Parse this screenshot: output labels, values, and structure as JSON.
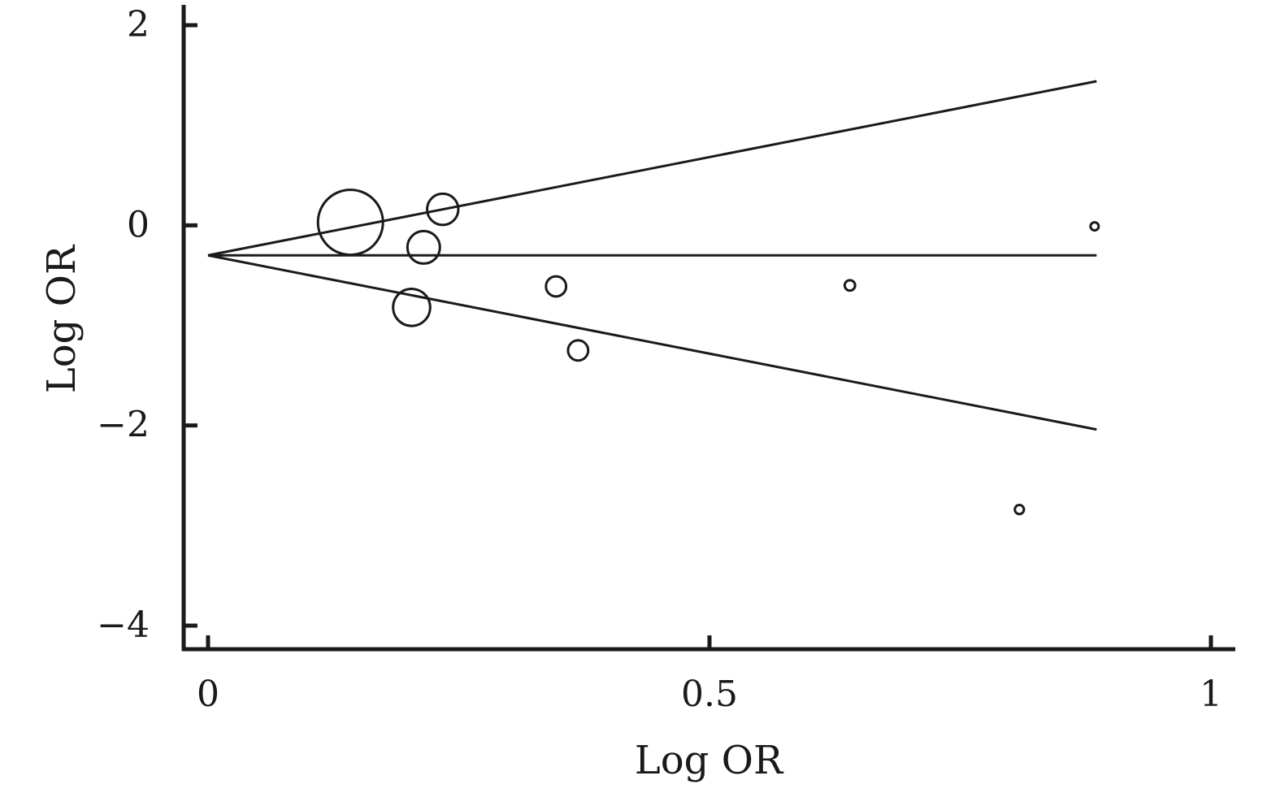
{
  "chart_data": {
    "type": "scatter",
    "subtype": "funnel-plot",
    "title": "",
    "xlabel": "Log OR",
    "ylabel": "Log OR",
    "xlim": [
      -0.025,
      1.02
    ],
    "ylim": [
      -4.2,
      2.2
    ],
    "x_ticks": [
      {
        "value": 0,
        "label": "0"
      },
      {
        "value": 0.5,
        "label": "0.5"
      },
      {
        "value": 1,
        "label": "1"
      }
    ],
    "y_ticks": [
      {
        "value": 2,
        "label": "2"
      },
      {
        "value": 0,
        "label": "0"
      },
      {
        "value": -2,
        "label": "−2"
      },
      {
        "value": -4,
        "label": "−4"
      }
    ],
    "grid": false,
    "legend": "none",
    "colors": {
      "axis": "#1a1a1a",
      "marker_stroke": "#1a1a1a",
      "background": "#ffffff"
    },
    "points": [
      {
        "x": 0.142,
        "y": 0.03,
        "weight": 1.0
      },
      {
        "x": 0.234,
        "y": 0.16,
        "weight": 0.48
      },
      {
        "x": 0.215,
        "y": -0.22,
        "weight": 0.5
      },
      {
        "x": 0.203,
        "y": -0.82,
        "weight": 0.57
      },
      {
        "x": 0.347,
        "y": -0.61,
        "weight": 0.31
      },
      {
        "x": 0.369,
        "y": -1.25,
        "weight": 0.31
      },
      {
        "x": 0.64,
        "y": -0.6,
        "weight": 0.16
      },
      {
        "x": 0.809,
        "y": -2.84,
        "weight": 0.14
      },
      {
        "x": 0.884,
        "y": -0.01,
        "weight": 0.12
      }
    ],
    "pooled_estimate": {
      "value": -0.3,
      "x_range": [
        0,
        0.886
      ]
    },
    "confidence_limits": {
      "apex": {
        "x": 0,
        "y": -0.3
      },
      "upper_end": {
        "x": 0.886,
        "y": 1.44
      },
      "lower_end": {
        "x": 0.886,
        "y": -2.04
      }
    }
  }
}
